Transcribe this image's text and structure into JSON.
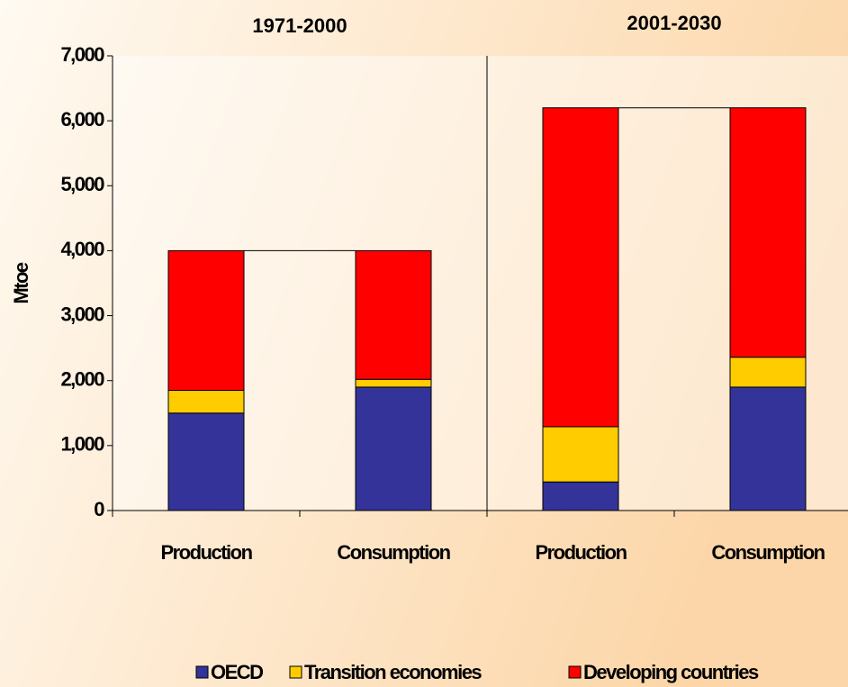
{
  "chart_data": {
    "type": "stacked_bar",
    "ylabel": "Mtoe",
    "groups": [
      "1971-2000",
      "2001-2030"
    ],
    "categories": [
      "Production",
      "Consumption",
      "Production",
      "Consumption"
    ],
    "series": [
      {
        "name": "OECD",
        "color": "#333399",
        "values": [
          1500,
          1900,
          440,
          1900
        ]
      },
      {
        "name": "Transition economies",
        "color": "#ffcc00",
        "values": [
          350,
          120,
          850,
          460
        ]
      },
      {
        "name": "Developing countries",
        "color": "#ff0000",
        "values": [
          2150,
          1980,
          4910,
          3840
        ]
      }
    ],
    "ylim": [
      0,
      7000
    ],
    "yticks": [
      0,
      {
        "value": 1000,
        "label": "1,000"
      },
      {
        "value": 2000,
        "label": "2,000"
      },
      {
        "value": 3000,
        "label": "3,000"
      },
      {
        "value": 4000,
        "label": "4,000"
      },
      {
        "value": 5000,
        "label": "5,000"
      },
      {
        "value": 6000,
        "label": "6,000"
      },
      {
        "value": 7000,
        "label": "7,000"
      }
    ],
    "legend": "bottom"
  }
}
